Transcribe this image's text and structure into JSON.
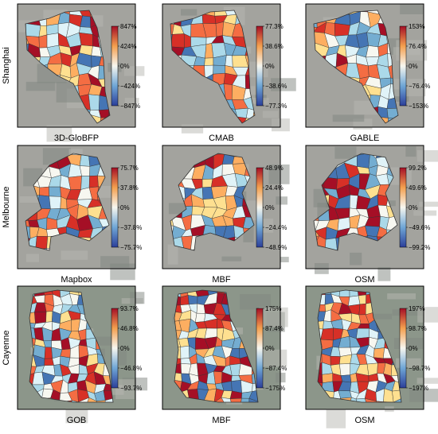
{
  "rows": [
    {
      "label": "Shanghai",
      "panels": [
        {
          "label": "3D-GloBFP",
          "ticks": [
            "847%",
            "424%",
            "0%",
            "−424%",
            "−847%"
          ]
        },
        {
          "label": "CMAB",
          "ticks": [
            "77.3%",
            "38.6%",
            "0%",
            "−38.6%",
            "−77.3%"
          ]
        },
        {
          "label": "GABLE",
          "ticks": [
            "153%",
            "76.4%",
            "0%",
            "−76.4%",
            "−153%"
          ]
        }
      ]
    },
    {
      "label": "Melbourne",
      "panels": [
        {
          "label": "Mapbox",
          "ticks": [
            "75.7%",
            "37.8%",
            "0%",
            "−37.8%",
            "−75.7%"
          ]
        },
        {
          "label": "MBF",
          "ticks": [
            "48.9%",
            "24.4%",
            "0%",
            "−24.4%",
            "−48.9%"
          ]
        },
        {
          "label": "OSM",
          "ticks": [
            "99.2%",
            "49.6%",
            "0%",
            "−49.6%",
            "−99.2%"
          ]
        }
      ]
    },
    {
      "label": "Cayenne",
      "panels": [
        {
          "label": "GOB",
          "ticks": [
            "93.7%",
            "46.8%",
            "0%",
            "−46.8%",
            "−93.7%"
          ]
        },
        {
          "label": "MBF",
          "ticks": [
            "175%",
            "87.4%",
            "0%",
            "−87.4%",
            "−175%"
          ]
        },
        {
          "label": "OSM",
          "ticks": [
            "197%",
            "98.7%",
            "0%",
            "−98.7%",
            "−197%"
          ]
        }
      ]
    }
  ]
}
